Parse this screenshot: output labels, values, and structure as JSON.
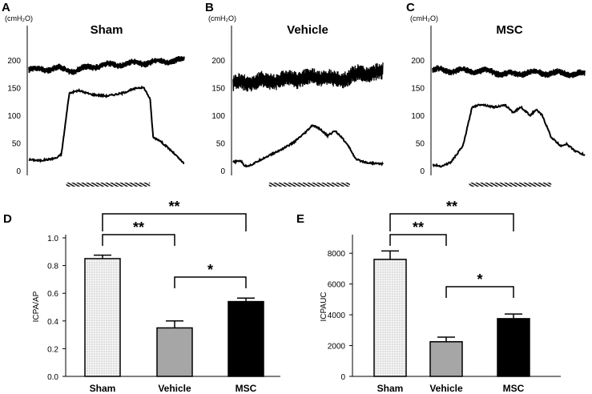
{
  "colors": {
    "ink": "#000000",
    "vehicle_bar": "#a6a6a6",
    "msc_bar": "#000000",
    "sham_bar": "#f2f2f2"
  },
  "units": "(cmH₂O)",
  "chart_data": [
    {
      "panel": "A",
      "title": "Sham",
      "type": "line",
      "y_ticks": [
        0,
        50,
        100,
        150,
        200
      ],
      "ylim": [
        0,
        250
      ],
      "top_trace": {
        "start": 182,
        "end": 200,
        "noise": 6,
        "dip_at": 0.3,
        "dip_depth": 6
      },
      "bottom_trace": [
        [
          0,
          20
        ],
        [
          0.07,
          18
        ],
        [
          0.12,
          20
        ],
        [
          0.18,
          23
        ],
        [
          0.21,
          30
        ],
        [
          0.26,
          140
        ],
        [
          0.32,
          145
        ],
        [
          0.4,
          138
        ],
        [
          0.5,
          135
        ],
        [
          0.6,
          140
        ],
        [
          0.7,
          150
        ],
        [
          0.74,
          150
        ],
        [
          0.78,
          130
        ],
        [
          0.8,
          60
        ],
        [
          0.84,
          55
        ],
        [
          0.88,
          45
        ],
        [
          0.92,
          35
        ],
        [
          1,
          12
        ]
      ],
      "stim_bar": [
        0.25,
        0.78
      ]
    },
    {
      "panel": "B",
      "title": "Vehicle",
      "type": "line",
      "y_ticks": [
        0,
        50,
        100,
        150,
        200
      ],
      "ylim": [
        0,
        250
      ],
      "top_trace": {
        "start": 158,
        "end": 178,
        "noise": 16,
        "dip_at": 0.7,
        "dip_depth": 8
      },
      "bottom_trace": [
        [
          0,
          15
        ],
        [
          0.05,
          18
        ],
        [
          0.08,
          8
        ],
        [
          0.12,
          10
        ],
        [
          0.2,
          22
        ],
        [
          0.3,
          35
        ],
        [
          0.4,
          50
        ],
        [
          0.48,
          68
        ],
        [
          0.53,
          82
        ],
        [
          0.58,
          75
        ],
        [
          0.63,
          63
        ],
        [
          0.68,
          72
        ],
        [
          0.72,
          62
        ],
        [
          0.78,
          40
        ],
        [
          0.82,
          20
        ],
        [
          0.9,
          14
        ],
        [
          1,
          12
        ]
      ],
      "stim_bar": [
        0.25,
        0.78
      ]
    },
    {
      "panel": "C",
      "title": "MSC",
      "type": "line",
      "y_ticks": [
        0,
        50,
        100,
        150,
        200
      ],
      "ylim": [
        0,
        250
      ],
      "top_trace": {
        "start": 182,
        "end": 175,
        "noise": 6,
        "dip_at": 0.5,
        "dip_depth": 4
      },
      "bottom_trace": [
        [
          0,
          10
        ],
        [
          0.06,
          8
        ],
        [
          0.12,
          15
        ],
        [
          0.2,
          45
        ],
        [
          0.26,
          115
        ],
        [
          0.32,
          120
        ],
        [
          0.4,
          115
        ],
        [
          0.48,
          118
        ],
        [
          0.53,
          105
        ],
        [
          0.58,
          115
        ],
        [
          0.64,
          100
        ],
        [
          0.68,
          110
        ],
        [
          0.72,
          100
        ],
        [
          0.78,
          60
        ],
        [
          0.84,
          45
        ],
        [
          0.88,
          48
        ],
        [
          0.94,
          35
        ],
        [
          1,
          28
        ]
      ],
      "stim_bar": [
        0.25,
        0.78
      ]
    },
    {
      "panel": "D",
      "type": "bar",
      "ylabel": "ICPA/AP",
      "categories": [
        "Sham",
        "Vehicle",
        "MSC"
      ],
      "values": [
        0.85,
        0.35,
        0.54
      ],
      "errors": [
        0.025,
        0.05,
        0.025
      ],
      "ylim": [
        0,
        1.0
      ],
      "y_ticks": [
        "0.0",
        "0.2",
        "0.4",
        "0.6",
        "0.8",
        "1.0"
      ],
      "significance": [
        {
          "from": 0,
          "to": 2,
          "label": "**"
        },
        {
          "from": 0,
          "to": 1,
          "label": "**"
        },
        {
          "from": 1,
          "to": 2,
          "label": "*"
        }
      ]
    },
    {
      "panel": "E",
      "type": "bar",
      "ylabel": "ICPAUC",
      "categories": [
        "Sham",
        "Vehicle",
        "MSC"
      ],
      "values": [
        7600,
        2250,
        3750
      ],
      "errors": [
        550,
        300,
        300
      ],
      "ylim": [
        0,
        9000
      ],
      "y_ticks": [
        "0",
        "2000",
        "4000",
        "6000",
        "8000"
      ],
      "significance": [
        {
          "from": 0,
          "to": 2,
          "label": "**"
        },
        {
          "from": 0,
          "to": 1,
          "label": "**"
        },
        {
          "from": 1,
          "to": 2,
          "label": "*"
        }
      ]
    }
  ]
}
